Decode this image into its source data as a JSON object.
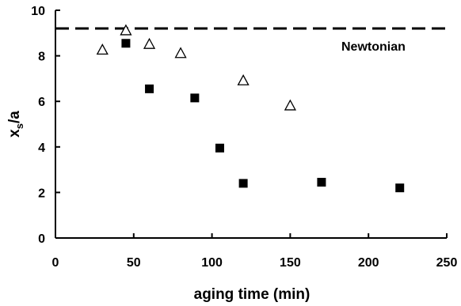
{
  "chart_data": {
    "type": "scatter",
    "xlabel": "aging time (min)",
    "ylabel": {
      "main": "x",
      "sub": "s",
      "rest": "/a"
    },
    "xlim": [
      0,
      250
    ],
    "ylim": [
      0,
      10
    ],
    "xticks": [
      "0",
      "50",
      "100",
      "150",
      "200",
      "250"
    ],
    "yticks": [
      "0",
      "2",
      "4",
      "6",
      "8",
      "10"
    ],
    "grid": false,
    "legend": "none",
    "series": [
      {
        "marker": "open-triangle",
        "points": [
          {
            "x": 30,
            "y": 8.25
          },
          {
            "x": 45,
            "y": 9.1
          },
          {
            "x": 60,
            "y": 8.5
          },
          {
            "x": 80,
            "y": 8.1
          },
          {
            "x": 120,
            "y": 6.9
          },
          {
            "x": 150,
            "y": 5.8
          }
        ]
      },
      {
        "marker": "filled-square",
        "points": [
          {
            "x": 45,
            "y": 8.55
          },
          {
            "x": 60,
            "y": 6.55
          },
          {
            "x": 89,
            "y": 6.15
          },
          {
            "x": 105,
            "y": 3.95
          },
          {
            "x": 120,
            "y": 2.4
          },
          {
            "x": 170,
            "y": 2.45
          },
          {
            "x": 220,
            "y": 2.2
          }
        ]
      }
    ],
    "reference_line": {
      "label": "Newtonian",
      "y": 9.2,
      "style": "dashed"
    }
  }
}
